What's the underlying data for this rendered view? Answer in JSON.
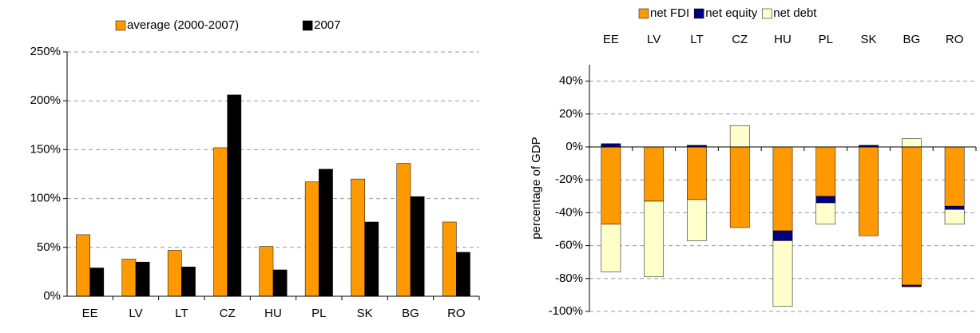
{
  "chart_data": [
    {
      "type": "bar",
      "categories": [
        "EE",
        "LV",
        "LT",
        "CZ",
        "HU",
        "PL",
        "SK",
        "BG",
        "RO"
      ],
      "series": [
        {
          "name": "average (2000-2007)",
          "color": "#ff9900",
          "values": [
            63,
            38,
            47,
            152,
            51,
            117,
            120,
            136,
            76
          ]
        },
        {
          "name": "2007",
          "color": "#000000",
          "values": [
            29,
            35,
            30,
            206,
            27,
            130,
            76,
            102,
            45
          ]
        }
      ],
      "ylim": [
        0,
        250
      ],
      "yticks": [
        {
          "value": 0,
          "label": "0%"
        },
        {
          "value": 50,
          "label": "50%"
        },
        {
          "value": 100,
          "label": "100%"
        },
        {
          "value": 150,
          "label": "150%"
        },
        {
          "value": 200,
          "label": "200%"
        },
        {
          "value": 250,
          "label": "250%"
        }
      ],
      "grid": true
    },
    {
      "type": "stacked_bar",
      "y_label": "percentage of GDP",
      "categories": [
        "EE",
        "LV",
        "LT",
        "CZ",
        "HU",
        "PL",
        "SK",
        "BG",
        "RO"
      ],
      "series": [
        {
          "name": "net FDI",
          "color": "#ff9900",
          "values": [
            -47,
            -33,
            -32,
            -49,
            -51,
            -30,
            -54,
            -84,
            -36
          ]
        },
        {
          "name": "net equity",
          "color": "#000080",
          "values": [
            2,
            0,
            1,
            0,
            -6,
            -4,
            1,
            -1,
            -2
          ]
        },
        {
          "name": "net debt",
          "color": "#ffffcc",
          "values": [
            -29,
            -46,
            -25,
            13,
            -40,
            -13,
            0,
            5,
            -9
          ]
        }
      ],
      "ylim": [
        -100,
        50
      ],
      "yticks": [
        {
          "value": -100,
          "label": "-100%"
        },
        {
          "value": -80,
          "label": "-80%"
        },
        {
          "value": -60,
          "label": "-60%"
        },
        {
          "value": -40,
          "label": "-40%"
        },
        {
          "value": -20,
          "label": "-20%"
        },
        {
          "value": 0,
          "label": "0%"
        },
        {
          "value": 20,
          "label": "20%"
        },
        {
          "value": 40,
          "label": "40%"
        }
      ],
      "grid": true
    }
  ]
}
